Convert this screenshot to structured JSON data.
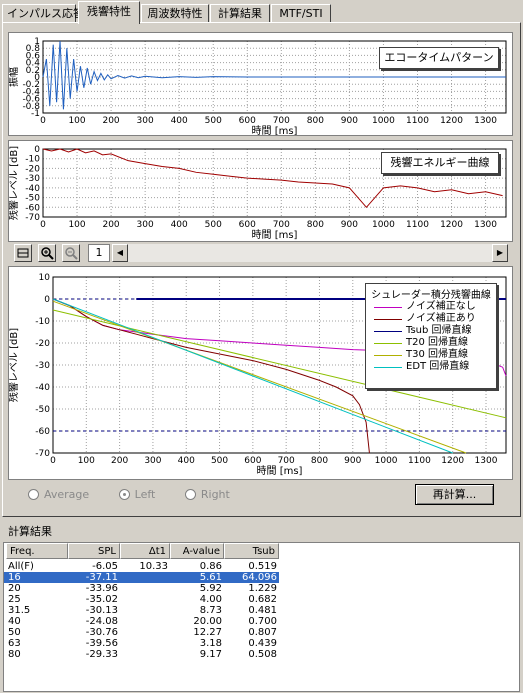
{
  "tabs": [
    {
      "label": "インパルス応答"
    },
    {
      "label": "残響特性"
    },
    {
      "label": "周波数特性"
    },
    {
      "label": "計算結果"
    },
    {
      "label": "MTF/STI"
    }
  ],
  "echo_chart": {
    "legend": "エコータイムパターン",
    "ylabel": "振幅",
    "xlabel": "時間 [ms]",
    "y_ticks": [
      "1",
      "0.8",
      "0.6",
      "0.4",
      "0.2",
      "0",
      "-0.2",
      "-0.4",
      "-0.6",
      "-0.8",
      "-1"
    ],
    "x_ticks": [
      "0",
      "100",
      "200",
      "300",
      "400",
      "500",
      "600",
      "700",
      "800",
      "900",
      "1000",
      "1100",
      "1200",
      "1300"
    ]
  },
  "energy_chart": {
    "legend": "残響エネルギー曲線",
    "ylabel": "残響レベル [dB]",
    "xlabel": "時間 [ms]",
    "y_ticks": [
      "0",
      "-10",
      "-20",
      "-30",
      "-40",
      "-50",
      "-60",
      "-70"
    ],
    "x_ticks": [
      "0",
      "100",
      "200",
      "300",
      "400",
      "500",
      "600",
      "700",
      "800",
      "900",
      "1000",
      "1100",
      "1200",
      "1300"
    ]
  },
  "toolbar": {
    "page_value": "1"
  },
  "decay_chart": {
    "legend_title": "シュレーダー積分残響曲線",
    "legend_items": [
      {
        "label": "ノイズ補正なし",
        "color": "#c000c0"
      },
      {
        "label": "ノイズ補正あり",
        "color": "#800000"
      },
      {
        "label": "Tsub 回帰直線",
        "color": "#000080"
      },
      {
        "label": "T20 回帰直線",
        "color": "#8cbf00"
      },
      {
        "label": "T30 回帰直線",
        "color": "#b0b000"
      },
      {
        "label": "EDT 回帰直線",
        "color": "#00c0c0"
      }
    ],
    "ylabel": "残響レベル [dB]",
    "xlabel": "時間 [ms]",
    "y_ticks": [
      "10",
      "0",
      "-10",
      "-20",
      "-30",
      "-40",
      "-50",
      "-60",
      "-70"
    ],
    "x_ticks": [
      "0",
      "100",
      "200",
      "300",
      "400",
      "500",
      "600",
      "700",
      "800",
      "900",
      "1000",
      "1100",
      "1200",
      "1300"
    ]
  },
  "chart_data": [
    {
      "type": "line",
      "title": "エコータイムパターン",
      "xlabel": "時間 [ms]",
      "ylabel": "振幅",
      "xlim": [
        0,
        1360
      ],
      "ylim": [
        -1,
        1
      ],
      "grid": true,
      "series": [
        {
          "x": [
            0,
            10,
            20,
            30,
            40,
            50,
            60,
            70,
            80,
            90,
            100,
            110,
            120,
            130,
            140,
            150,
            160,
            170,
            180,
            190,
            200,
            220,
            240,
            260,
            280,
            300,
            350,
            400,
            450,
            500,
            600,
            700,
            800,
            900,
            1000,
            1100,
            1200,
            1300,
            1360
          ],
          "y": [
            0,
            0.5,
            -0.8,
            0.9,
            -0.7,
            1.0,
            -0.9,
            0.8,
            -0.6,
            0.5,
            -0.4,
            0.3,
            -0.3,
            0.25,
            -0.2,
            0.15,
            -0.1,
            0.1,
            -0.08,
            0.06,
            -0.05,
            0.04,
            -0.03,
            0.03,
            -0.02,
            0.02,
            -0.02,
            0.01,
            -0.01,
            0.01,
            0,
            0,
            0,
            0,
            0,
            0,
            0,
            0,
            0
          ]
        }
      ]
    },
    {
      "type": "line",
      "title": "残響エネルギー曲線",
      "xlabel": "時間 [ms]",
      "ylabel": "残響レベル [dB]",
      "xlim": [
        0,
        1360
      ],
      "ylim": [
        -70,
        0
      ],
      "grid": true,
      "series": [
        {
          "x": [
            0,
            25,
            50,
            75,
            100,
            125,
            150,
            175,
            200,
            250,
            300,
            350,
            400,
            450,
            500,
            550,
            600,
            650,
            700,
            750,
            800,
            850,
            900,
            950,
            1000,
            1050,
            1100,
            1150,
            1200,
            1250,
            1300,
            1350
          ],
          "y": [
            0,
            -2,
            0,
            -3,
            0,
            -4,
            -2,
            -6,
            -5,
            -12,
            -15,
            -18,
            -20,
            -24,
            -26,
            -28,
            -30,
            -31,
            -32,
            -34,
            -35,
            -36,
            -40,
            -60,
            -40,
            -38,
            -40,
            -44,
            -42,
            -46,
            -44,
            -48
          ]
        }
      ]
    },
    {
      "type": "line",
      "title": "シュレーダー積分残響曲線",
      "xlabel": "時間 [ms]",
      "ylabel": "残響レベル [dB]",
      "xlim": [
        0,
        1360
      ],
      "ylim": [
        -70,
        10
      ],
      "grid": true,
      "legend": "top-right",
      "series": [
        {
          "name": "ノイズ補正なし",
          "x": [
            0,
            50,
            100,
            150,
            200,
            250,
            300,
            400,
            500,
            600,
            700,
            800,
            900,
            1000,
            1100,
            1200,
            1300,
            1350,
            1360
          ],
          "y": [
            0,
            -3,
            -8,
            -12,
            -14,
            -15,
            -16,
            -18,
            -19,
            -20,
            -21,
            -22,
            -23,
            -23.5,
            -24,
            -25,
            -28,
            -31,
            -35
          ]
        },
        {
          "name": "ノイズ補正あり",
          "x": [
            0,
            50,
            100,
            150,
            200,
            250,
            300,
            400,
            500,
            600,
            700,
            800,
            850,
            900,
            920,
            940,
            950
          ],
          "y": [
            0,
            -3,
            -8,
            -12,
            -14,
            -16,
            -18,
            -22,
            -25,
            -28,
            -32,
            -37,
            -40,
            -44,
            -48,
            -56,
            -70
          ]
        },
        {
          "name": "Tsub 回帰直線",
          "x": [
            250,
            1360
          ],
          "y": [
            0,
            0
          ]
        },
        {
          "name": "T20 回帰直線",
          "x": [
            0,
            1360
          ],
          "y": [
            -5,
            -54
          ]
        },
        {
          "name": "T30 回帰直線",
          "x": [
            0,
            1240
          ],
          "y": [
            -1,
            -70
          ]
        },
        {
          "name": "EDT 回帰直線",
          "x": [
            0,
            1200
          ],
          "y": [
            0,
            -70
          ]
        }
      ]
    }
  ],
  "radios": {
    "average": "Average",
    "left": "Left",
    "right": "Right"
  },
  "recalc_button": "再計算...",
  "results": {
    "title": "計算結果",
    "headers": [
      "Freq.",
      "SPL",
      "Δt1",
      "A-value",
      "Tsub"
    ],
    "rows": [
      [
        "All(F)",
        "-6.05",
        "10.33",
        "0.86",
        "0.519"
      ],
      [
        "16",
        "-37.11",
        "",
        "5.61",
        "64.096"
      ],
      [
        "20",
        "-33.96",
        "",
        "5.92",
        "1.229"
      ],
      [
        "25",
        "-35.02",
        "",
        "4.00",
        "0.682"
      ],
      [
        "31.5",
        "-30.13",
        "",
        "8.73",
        "0.481"
      ],
      [
        "40",
        "-24.08",
        "",
        "20.00",
        "0.700"
      ],
      [
        "50",
        "-30.76",
        "",
        "12.27",
        "0.807"
      ],
      [
        "63",
        "-39.56",
        "",
        "3.18",
        "0.439"
      ],
      [
        "80",
        "-29.33",
        "",
        "9.17",
        "0.508"
      ]
    ],
    "selected_row": 1
  }
}
